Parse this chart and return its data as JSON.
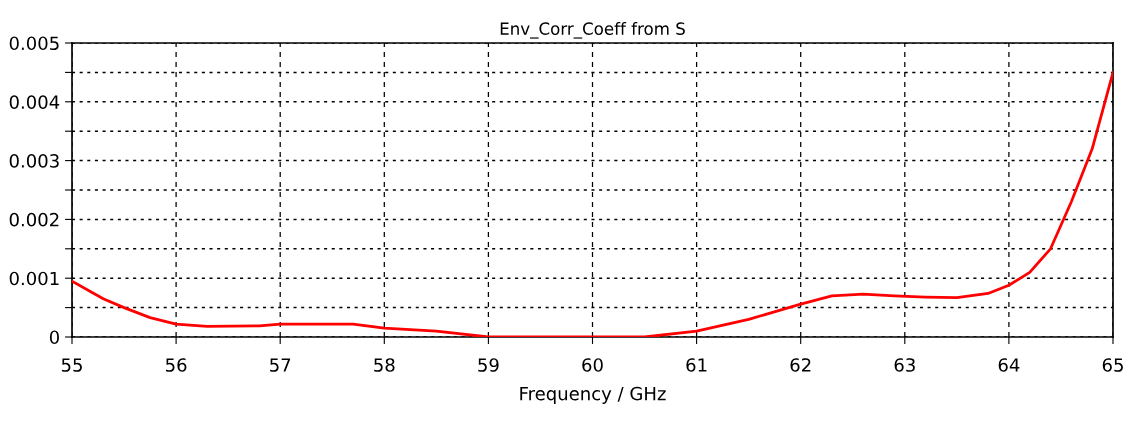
{
  "chart_data": {
    "type": "line",
    "title": "Env_Corr_Coeff from S",
    "xlabel": "Frequency / GHz",
    "x": [
      55,
      55.3,
      55.5,
      55.75,
      56,
      56.3,
      56.8,
      57,
      57.7,
      58,
      58.5,
      59,
      59.5,
      60,
      60.5,
      61,
      61.5,
      62,
      62.3,
      62.6,
      62.9,
      63.2,
      63.5,
      63.8,
      64,
      64.2,
      64.4,
      64.6,
      64.8,
      65
    ],
    "series": [
      {
        "color": "#ff0000",
        "values": [
          0.00095,
          0.00065,
          0.0005,
          0.00033,
          0.00022,
          0.00018,
          0.00019,
          0.00022,
          0.00022,
          0.00015,
          0.0001,
          0,
          0,
          0,
          0,
          0.0001,
          0.0003,
          0.00056,
          0.0007,
          0.00073,
          0.0007,
          0.00068,
          0.00067,
          0.00074,
          0.00088,
          0.0011,
          0.0015,
          0.0023,
          0.0032,
          0.0045
        ]
      }
    ],
    "xlim": [
      55,
      65
    ],
    "xticks": [
      55,
      56,
      57,
      58,
      59,
      60,
      61,
      62,
      63,
      64,
      65
    ],
    "ylim": [
      0,
      0.005
    ],
    "yticks": [
      0,
      {
        "value": 0.0005,
        "label": null
      },
      0.001,
      {
        "value": 0.0015,
        "label": null
      },
      0.002,
      {
        "value": 0.0025,
        "label": null
      },
      0.003,
      {
        "value": 0.0035,
        "label": null
      },
      0.004,
      {
        "value": 0.0045,
        "label": null
      },
      0.005
    ],
    "grid": true,
    "legend": false,
    "marker": "none",
    "line_style": "solid"
  }
}
